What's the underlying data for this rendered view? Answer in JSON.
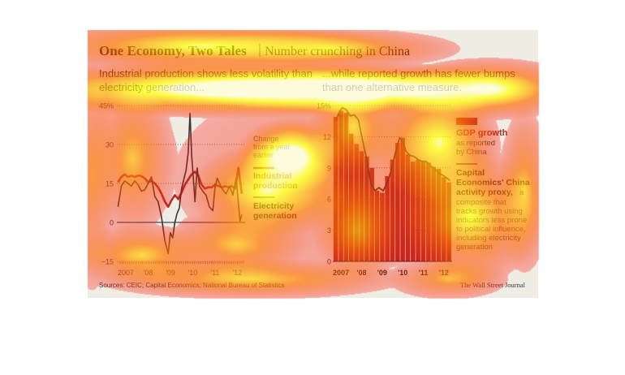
{
  "title": "One Economy, Two Tales",
  "subtitle": "Number crunching in China",
  "footer": {
    "sources": "Sources: CEIC; Capital Economics; National Bureau of Statistics",
    "credit": "The Wall Street Journal"
  },
  "colors": {
    "background": "#efece4",
    "red": "#b0302c",
    "dark": "#3a3634",
    "heat_yellow": "#ffff00",
    "heat_red": "#ff0000"
  },
  "chart_data": [
    {
      "type": "line",
      "title": "Industrial production shows less volatility than electricity generation...",
      "yticks": [
        "45%",
        "30",
        "15",
        "0",
        "−15"
      ],
      "ytick_values": [
        45,
        30,
        15,
        0,
        -15
      ],
      "ylim": [
        -15,
        45
      ],
      "xticks": [
        "2007",
        "'08",
        "'09",
        "'10",
        "'11",
        "'12"
      ],
      "xtick_values": [
        2007.0,
        2008.0,
        2009.0,
        2010.0,
        2011.0,
        2012.0
      ],
      "xlim": [
        2006.6,
        2012.35
      ],
      "annotation_lines": [
        "Change",
        "from a year",
        "earlier"
      ],
      "grid": true,
      "series": [
        {
          "name": "Industrial production",
          "color": "#b0302c",
          "x": [
            2006.65,
            2006.8,
            2006.95,
            2007.1,
            2007.25,
            2007.4,
            2007.55,
            2007.7,
            2007.85,
            2008.0,
            2008.15,
            2008.3,
            2008.45,
            2008.6,
            2008.75,
            2008.9,
            2009.05,
            2009.2,
            2009.35,
            2009.5,
            2009.65,
            2009.8,
            2009.95,
            2010.1,
            2010.25,
            2010.4,
            2010.55,
            2010.7,
            2010.85,
            2011.0,
            2011.15,
            2011.3,
            2011.45,
            2011.6,
            2011.75,
            2011.9,
            2012.05,
            2012.2
          ],
          "y": [
            15.5,
            17.5,
            18.5,
            17.5,
            18.0,
            17.5,
            18.0,
            17.8,
            17.0,
            15.5,
            16.0,
            15.0,
            13.5,
            11.0,
            8.0,
            6.0,
            8.5,
            10.5,
            9.0,
            11.5,
            14.5,
            16.5,
            18.5,
            19.5,
            18.0,
            14.5,
            13.0,
            13.5,
            13.5,
            14.5,
            14.0,
            13.5,
            14.0,
            13.5,
            14.0,
            13.0,
            21.0,
            11.0
          ]
        },
        {
          "name": "Electricity generation",
          "color": "#3a3634",
          "x": [
            2006.65,
            2006.8,
            2006.95,
            2007.1,
            2007.25,
            2007.4,
            2007.55,
            2007.7,
            2007.85,
            2008.0,
            2008.15,
            2008.3,
            2008.45,
            2008.6,
            2008.75,
            2008.9,
            2009.0,
            2009.1,
            2009.2,
            2009.3,
            2009.4,
            2009.5,
            2009.6,
            2009.7,
            2009.8,
            2009.88,
            2009.95,
            2010.02,
            2010.1,
            2010.2,
            2010.3,
            2010.45,
            2010.6,
            2010.75,
            2010.9,
            2011.0,
            2011.1,
            2011.2,
            2011.35,
            2011.5,
            2011.65,
            2011.8,
            2011.95,
            2012.05,
            2012.12,
            2012.2
          ],
          "y": [
            6.0,
            14.0,
            16.0,
            15.0,
            14.0,
            16.0,
            14.5,
            12.0,
            12.5,
            15.0,
            17.5,
            10.0,
            8.0,
            2.0,
            -7.0,
            -12.0,
            -4.0,
            -6.0,
            0.0,
            3.5,
            5.5,
            13.0,
            16.5,
            20.0,
            27.0,
            42.0,
            26.0,
            18.0,
            8.0,
            21.0,
            14.0,
            12.0,
            10.5,
            6.0,
            4.5,
            13.5,
            17.0,
            15.0,
            12.5,
            11.0,
            14.0,
            10.5,
            17.0,
            7.0,
            0.5,
            3.0
          ]
        }
      ],
      "legend": {
        "industrial_lines": [
          "Industrial",
          "production"
        ],
        "electricity_lines": [
          "Electricity",
          "generation"
        ]
      }
    },
    {
      "type": "bar",
      "title": "...while reported growth has fewer bumps than one alternative measure.",
      "yticks": [
        "15%",
        "12",
        "9",
        "6",
        "3",
        "0"
      ],
      "ytick_values": [
        15,
        12,
        9,
        6,
        3,
        0
      ],
      "ylim": [
        0,
        15
      ],
      "xticks": [
        "2007",
        "'08",
        "'09",
        "'10",
        "'11",
        "'12"
      ],
      "xtick_values": [
        2007.0,
        2008.0,
        2009.0,
        2010.0,
        2011.0,
        2012.0
      ],
      "xlim": [
        2006.6,
        2012.4
      ],
      "grid": true,
      "gdp_growth": {
        "name": "GDP growth",
        "color": "#b0302c",
        "x": [
          2006.75,
          2007.0,
          2007.25,
          2007.5,
          2007.75,
          2008.0,
          2008.25,
          2008.5,
          2008.75,
          2009.0,
          2009.25,
          2009.5,
          2009.75,
          2010.0,
          2010.25,
          2010.5,
          2010.75,
          2011.0,
          2011.25,
          2011.5,
          2011.75,
          2012.0,
          2012.25
        ],
        "values": [
          13.9,
          14.5,
          14.3,
          12.3,
          11.3,
          10.6,
          10.1,
          9.0,
          6.8,
          6.6,
          8.2,
          9.8,
          11.4,
          11.9,
          10.3,
          9.6,
          9.8,
          9.7,
          9.5,
          9.1,
          8.9,
          8.1,
          7.6
        ]
      },
      "activity_proxy": {
        "name": "Capital Economics' China activity proxy",
        "color": "#3a3634",
        "x": [
          2006.75,
          2006.9,
          2007.05,
          2007.25,
          2007.45,
          2007.65,
          2007.85,
          2008.05,
          2008.25,
          2008.45,
          2008.65,
          2008.85,
          2009.05,
          2009.25,
          2009.45,
          2009.65,
          2009.85,
          2010.0,
          2010.15,
          2010.35,
          2010.55,
          2010.75,
          2010.95,
          2011.15,
          2011.35,
          2011.55,
          2011.75,
          2011.95,
          2012.15,
          2012.3
        ],
        "y": [
          13.5,
          14.3,
          14.8,
          14.6,
          14.0,
          14.1,
          13.6,
          11.6,
          9.8,
          7.5,
          6.8,
          7.1,
          6.8,
          7.6,
          8.8,
          10.5,
          11.9,
          11.6,
          10.6,
          10.2,
          10.1,
          9.8,
          9.6,
          9.6,
          9.2,
          8.9,
          8.5,
          8.3,
          8.0,
          7.8
        ]
      },
      "legend": {
        "gdp_label": "GDP growth",
        "gdp_desc": [
          "as reported",
          "by China"
        ],
        "proxy_bold": [
          "Capital",
          "Economics' China",
          "activity proxy"
        ],
        "proxy_desc": [
          "a",
          "composite that",
          "tracks growth using",
          "indicators less prone",
          "to political influence,",
          "including electricity",
          "generation"
        ]
      }
    }
  ]
}
